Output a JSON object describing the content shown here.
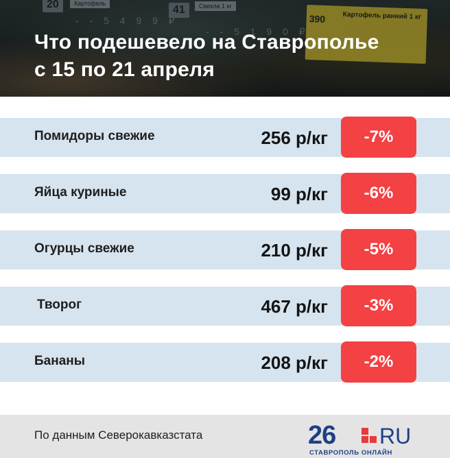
{
  "header": {
    "title_line1": "Что подешевело на Ставрополье",
    "title_line2": "с 15 по 21 апреля",
    "background_tags": {
      "tag1_number": "20",
      "tag1_name": "Картофель",
      "tag1_price": "- - 5 4 9 9 ₽",
      "tag2_number": "41",
      "tag2_name": "Свекла 1 кг",
      "tag2_price": "- - 5 1 9 0 ₽",
      "tag3_number": "390",
      "tag3_name": "Картофель ранний 1 кг"
    }
  },
  "items": [
    {
      "name": "Помидоры свежие",
      "price": "256 р/кг",
      "change": "-7%"
    },
    {
      "name": "Яйца куриные",
      "price": "99 р/кг",
      "change": "-6%"
    },
    {
      "name": "Огурцы свежие",
      "price": "210 р/кг",
      "change": "-5%"
    },
    {
      "name": "Творог",
      "price": "467 р/кг",
      "change": "-3%"
    },
    {
      "name": "Бананы",
      "price": "208 р/кг",
      "change": "-2%"
    }
  ],
  "footer": {
    "source": "По данным Северокавказстата",
    "logo_number": "26",
    "logo_ru": "RU",
    "logo_subtitle": "СТАВРОПОЛЬ ОНЛАЙН"
  },
  "colors": {
    "row_background": "#d6e4ef",
    "badge": "#f34144",
    "footer_background": "#e4e4e4",
    "logo_blue": "#1f3f86",
    "logo_red": "#e83a3a"
  }
}
